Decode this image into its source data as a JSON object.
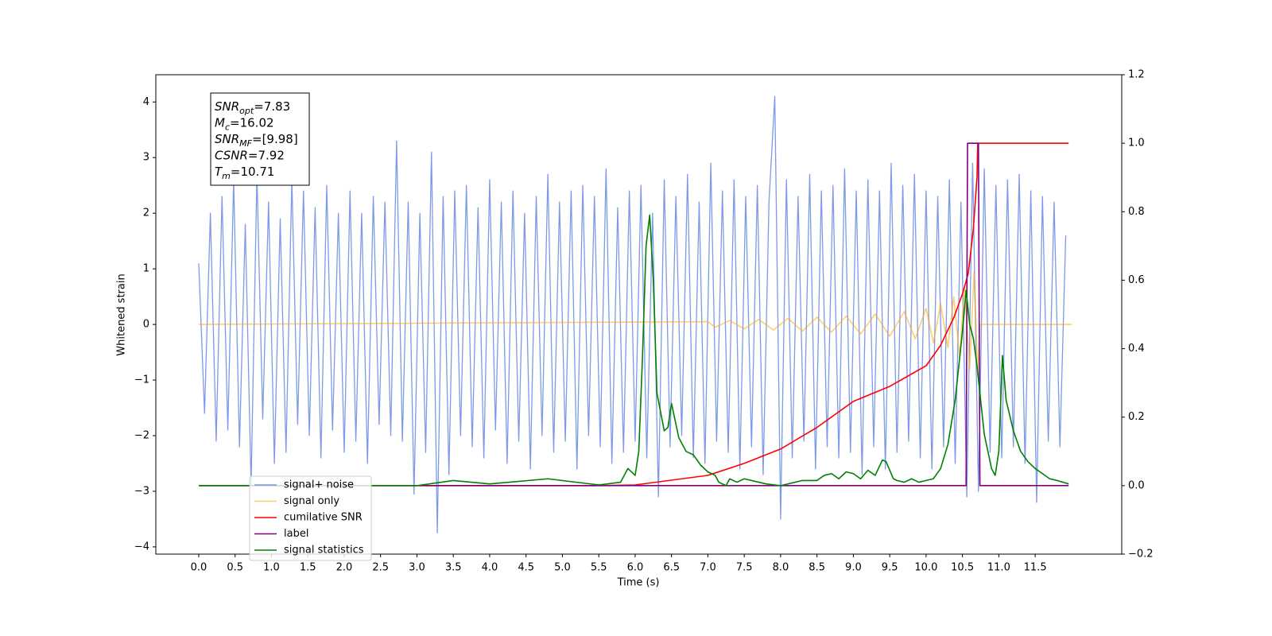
{
  "chart_data": {
    "type": "line",
    "xlabel": "Time (s)",
    "ylabel": "Whitened strain",
    "xlim": [
      -0.59,
      12.69
    ],
    "ylim": [
      -4.13,
      4.49
    ],
    "y2lim": [
      -0.2,
      1.2
    ],
    "xticks": [
      {
        "value": 0,
        "label": "0.0"
      },
      {
        "value": 0.5,
        "label": "0.5"
      },
      {
        "value": 1,
        "label": "1.0"
      },
      {
        "value": 1.5,
        "label": "1.5"
      },
      {
        "value": 2,
        "label": "2.0"
      },
      {
        "value": 2.5,
        "label": "2.5"
      },
      {
        "value": 3,
        "label": "3.0"
      },
      {
        "value": 3.5,
        "label": "3.5"
      },
      {
        "value": 4,
        "label": "4.0"
      },
      {
        "value": 4.5,
        "label": "4.5"
      },
      {
        "value": 5,
        "label": "5.0"
      },
      {
        "value": 5.5,
        "label": "5.5"
      },
      {
        "value": 6,
        "label": "6.0"
      },
      {
        "value": 6.5,
        "label": "6.5"
      },
      {
        "value": 7,
        "label": "7.0"
      },
      {
        "value": 7.5,
        "label": "7.5"
      },
      {
        "value": 8,
        "label": "8.0"
      },
      {
        "value": 8.5,
        "label": "8.5"
      },
      {
        "value": 9,
        "label": "9.0"
      },
      {
        "value": 9.5,
        "label": "9.5"
      },
      {
        "value": 10,
        "label": "10.0"
      },
      {
        "value": 10.5,
        "label": "10.5"
      },
      {
        "value": 11,
        "label": "11.0"
      },
      {
        "value": 11.5,
        "label": "11.5"
      }
    ],
    "yticks": [
      {
        "value": -4,
        "label": "−4"
      },
      {
        "value": -3,
        "label": "−3"
      },
      {
        "value": -2,
        "label": "−2"
      },
      {
        "value": -1,
        "label": "−1"
      },
      0,
      1,
      2,
      3,
      4
    ],
    "y2ticks": [
      {
        "value": -0.2,
        "label": "−0.2"
      },
      {
        "value": 0,
        "label": "0.0"
      },
      0.2,
      0.4,
      0.6,
      0.8,
      {
        "value": 1,
        "label": "1.0"
      },
      1.2
    ],
    "legend": "lower left",
    "annotation": [
      {
        "base": "SNR",
        "sub": "opt",
        "text": "=7.83"
      },
      {
        "base": "M",
        "sub": "c",
        "text": "=16.02"
      },
      {
        "base": "SNR",
        "sub": "MF",
        "text": "=[9.98]"
      },
      {
        "base": "CSNR",
        "text": "=7.92"
      },
      {
        "base": "T",
        "sub": "m",
        "text": "=10.71"
      }
    ],
    "series": [
      {
        "name": "signal+ noise",
        "color": "#7793e8",
        "axis": "y",
        "x": [
          0,
          0.08,
          0.16,
          0.24,
          0.32,
          0.4,
          0.48,
          0.56,
          0.64,
          0.72,
          0.8,
          0.88,
          0.96,
          1.04,
          1.12,
          1.2,
          1.28,
          1.36,
          1.44,
          1.52,
          1.6,
          1.68,
          1.76,
          1.84,
          1.92,
          2,
          2.08,
          2.16,
          2.24,
          2.32,
          2.4,
          2.48,
          2.56,
          2.64,
          2.72,
          2.8,
          2.88,
          2.96,
          3.04,
          3.12,
          3.2,
          3.28,
          3.36,
          3.44,
          3.52,
          3.6,
          3.68,
          3.76,
          3.84,
          3.92,
          4,
          4.08,
          4.16,
          4.24,
          4.32,
          4.4,
          4.48,
          4.56,
          4.64,
          4.72,
          4.8,
          4.88,
          4.96,
          5.04,
          5.12,
          5.2,
          5.28,
          5.36,
          5.44,
          5.52,
          5.6,
          5.68,
          5.76,
          5.84,
          5.92,
          6,
          6.08,
          6.16,
          6.24,
          6.32,
          6.4,
          6.48,
          6.56,
          6.64,
          6.72,
          6.8,
          6.88,
          6.96,
          7.04,
          7.12,
          7.2,
          7.28,
          7.36,
          7.44,
          7.52,
          7.6,
          7.68,
          7.76,
          7.84,
          7.92,
          8,
          8.08,
          8.16,
          8.24,
          8.32,
          8.4,
          8.48,
          8.56,
          8.64,
          8.72,
          8.8,
          8.88,
          8.96,
          9.04,
          9.12,
          9.2,
          9.28,
          9.36,
          9.44,
          9.52,
          9.6,
          9.68,
          9.76,
          9.84,
          9.92,
          10,
          10.08,
          10.16,
          10.24,
          10.32,
          10.4,
          10.48,
          10.56,
          10.64,
          10.72,
          10.8,
          10.88,
          10.96,
          11.04,
          11.12,
          11.2,
          11.28,
          11.36,
          11.44,
          11.52,
          11.6,
          11.68,
          11.76,
          11.84,
          11.92
        ],
        "values": [
          1.1,
          -1.6,
          2.0,
          -2.1,
          2.3,
          -1.9,
          2.6,
          -2.2,
          1.8,
          -2.9,
          2.7,
          -1.7,
          2.2,
          -2.5,
          1.9,
          -2.3,
          2.6,
          -1.8,
          2.4,
          -2.0,
          2.1,
          -2.4,
          2.5,
          -1.9,
          2.0,
          -2.3,
          2.4,
          -2.1,
          2.0,
          -2.5,
          2.3,
          -1.8,
          2.2,
          -2.0,
          3.3,
          -2.1,
          2.2,
          -3.05,
          2.0,
          -2.3,
          3.1,
          -3.75,
          2.3,
          -2.7,
          2.4,
          -2.0,
          2.5,
          -2.2,
          2.1,
          -2.4,
          2.6,
          -1.9,
          2.2,
          -2.5,
          2.4,
          -2.1,
          2.0,
          -2.6,
          2.3,
          -2.0,
          2.7,
          -2.3,
          2.2,
          -2.1,
          2.4,
          -2.6,
          2.5,
          -2.0,
          2.3,
          -2.2,
          2.8,
          -2.5,
          2.1,
          -2.3,
          2.4,
          -2.1,
          2.5,
          -2.4,
          2.0,
          -3.1,
          2.6,
          -2.2,
          2.3,
          -2.0,
          2.7,
          -2.4,
          2.2,
          -2.5,
          2.9,
          -2.1,
          2.4,
          -2.3,
          2.6,
          -2.6,
          2.3,
          -2.2,
          2.5,
          -2.7,
          2.2,
          4.1,
          -3.5,
          2.6,
          -2.4,
          2.3,
          -2.1,
          2.7,
          -2.6,
          2.4,
          -2.2,
          2.5,
          -2.4,
          2.8,
          -2.3,
          2.4,
          -2.7,
          2.6,
          -2.2,
          2.4,
          -2.6,
          2.9,
          -2.3,
          2.5,
          -2.1,
          2.7,
          -2.4,
          2.4,
          -2.6,
          2.3,
          -2.2,
          2.6,
          -2.5,
          2.2,
          -3.1,
          2.9,
          -3.0,
          2.8,
          -2.3,
          2.5,
          -2.4,
          2.6,
          -2.2,
          2.7,
          -2.5,
          2.4,
          -3.2,
          2.3,
          -2.1,
          2.2,
          -2.2,
          1.6
        ]
      },
      {
        "name": "signal only",
        "color": "#ffa500",
        "axis": "y",
        "x": [
          0,
          7.0,
          7.1,
          7.3,
          7.5,
          7.7,
          7.9,
          8.1,
          8.3,
          8.5,
          8.7,
          8.9,
          9.1,
          9.3,
          9.5,
          9.7,
          9.85,
          10.0,
          10.1,
          10.2,
          10.3,
          10.38,
          10.46,
          10.53,
          10.6,
          10.66,
          10.71,
          10.74,
          12.0
        ],
        "values": [
          0,
          0.05,
          -0.05,
          0.07,
          -0.08,
          0.09,
          -0.1,
          0.11,
          -0.12,
          0.13,
          -0.14,
          0.15,
          -0.17,
          0.19,
          -0.21,
          0.23,
          -0.26,
          0.29,
          -0.33,
          0.37,
          -0.42,
          0.5,
          -0.58,
          0.68,
          -0.8,
          0.95,
          -0.9,
          0,
          0
        ]
      },
      {
        "name": "cumilative SNR",
        "color": "#ff0000",
        "axis": "y2",
        "x": [
          0,
          5.5,
          6.0,
          7.0,
          7.5,
          8.0,
          8.5,
          9.0,
          9.5,
          10.0,
          10.2,
          10.38,
          10.5,
          10.58,
          10.65,
          10.7,
          10.71,
          11.96
        ],
        "values": [
          0,
          0,
          0.002,
          0.03,
          0.065,
          0.107,
          0.17,
          0.246,
          0.29,
          0.35,
          0.41,
          0.49,
          0.56,
          0.62,
          0.75,
          0.9,
          1.0,
          1.0
        ]
      },
      {
        "name": "label",
        "color": "#800080",
        "axis": "y2",
        "x": [
          0,
          10.55,
          10.57,
          10.72,
          10.74,
          11.96
        ],
        "values": [
          0,
          0,
          1,
          1,
          0,
          0
        ]
      },
      {
        "name": "signal statistics",
        "color": "#008000",
        "axis": "y2",
        "x": [
          0,
          3,
          3.5,
          4,
          4.8,
          5.5,
          5.8,
          5.9,
          6.0,
          6.05,
          6.1,
          6.15,
          6.2,
          6.25,
          6.3,
          6.4,
          6.45,
          6.5,
          6.6,
          6.7,
          6.8,
          6.9,
          7.0,
          7.1,
          7.15,
          7.25,
          7.3,
          7.4,
          7.5,
          7.7,
          7.8,
          8.0,
          8.2,
          8.3,
          8.5,
          8.6,
          8.7,
          8.8,
          8.9,
          9.0,
          9.1,
          9.2,
          9.3,
          9.4,
          9.45,
          9.55,
          9.6,
          9.7,
          9.8,
          9.9,
          10.0,
          10.1,
          10.2,
          10.3,
          10.4,
          10.5,
          10.55,
          10.6,
          10.65,
          10.7,
          10.8,
          10.9,
          10.95,
          11.0,
          11.05,
          11.1,
          11.2,
          11.3,
          11.4,
          11.5,
          11.6,
          11.7,
          11.8,
          11.96
        ],
        "values": [
          0,
          0,
          0.015,
          0.005,
          0.02,
          0.002,
          0.01,
          0.05,
          0.03,
          0.1,
          0.37,
          0.7,
          0.79,
          0.6,
          0.27,
          0.16,
          0.17,
          0.24,
          0.14,
          0.1,
          0.09,
          0.06,
          0.04,
          0.03,
          0.01,
          0.0,
          0.02,
          0.01,
          0.02,
          0.01,
          0.005,
          0.0,
          0.01,
          0.015,
          0.015,
          0.03,
          0.035,
          0.02,
          0.04,
          0.035,
          0.02,
          0.045,
          0.03,
          0.075,
          0.07,
          0.02,
          0.015,
          0.01,
          0.02,
          0.01,
          0.015,
          0.02,
          0.05,
          0.12,
          0.25,
          0.45,
          0.57,
          0.47,
          0.43,
          0.35,
          0.15,
          0.05,
          0.03,
          0.1,
          0.38,
          0.25,
          0.16,
          0.1,
          0.07,
          0.05,
          0.035,
          0.02,
          0.015,
          0.005
        ]
      }
    ]
  }
}
